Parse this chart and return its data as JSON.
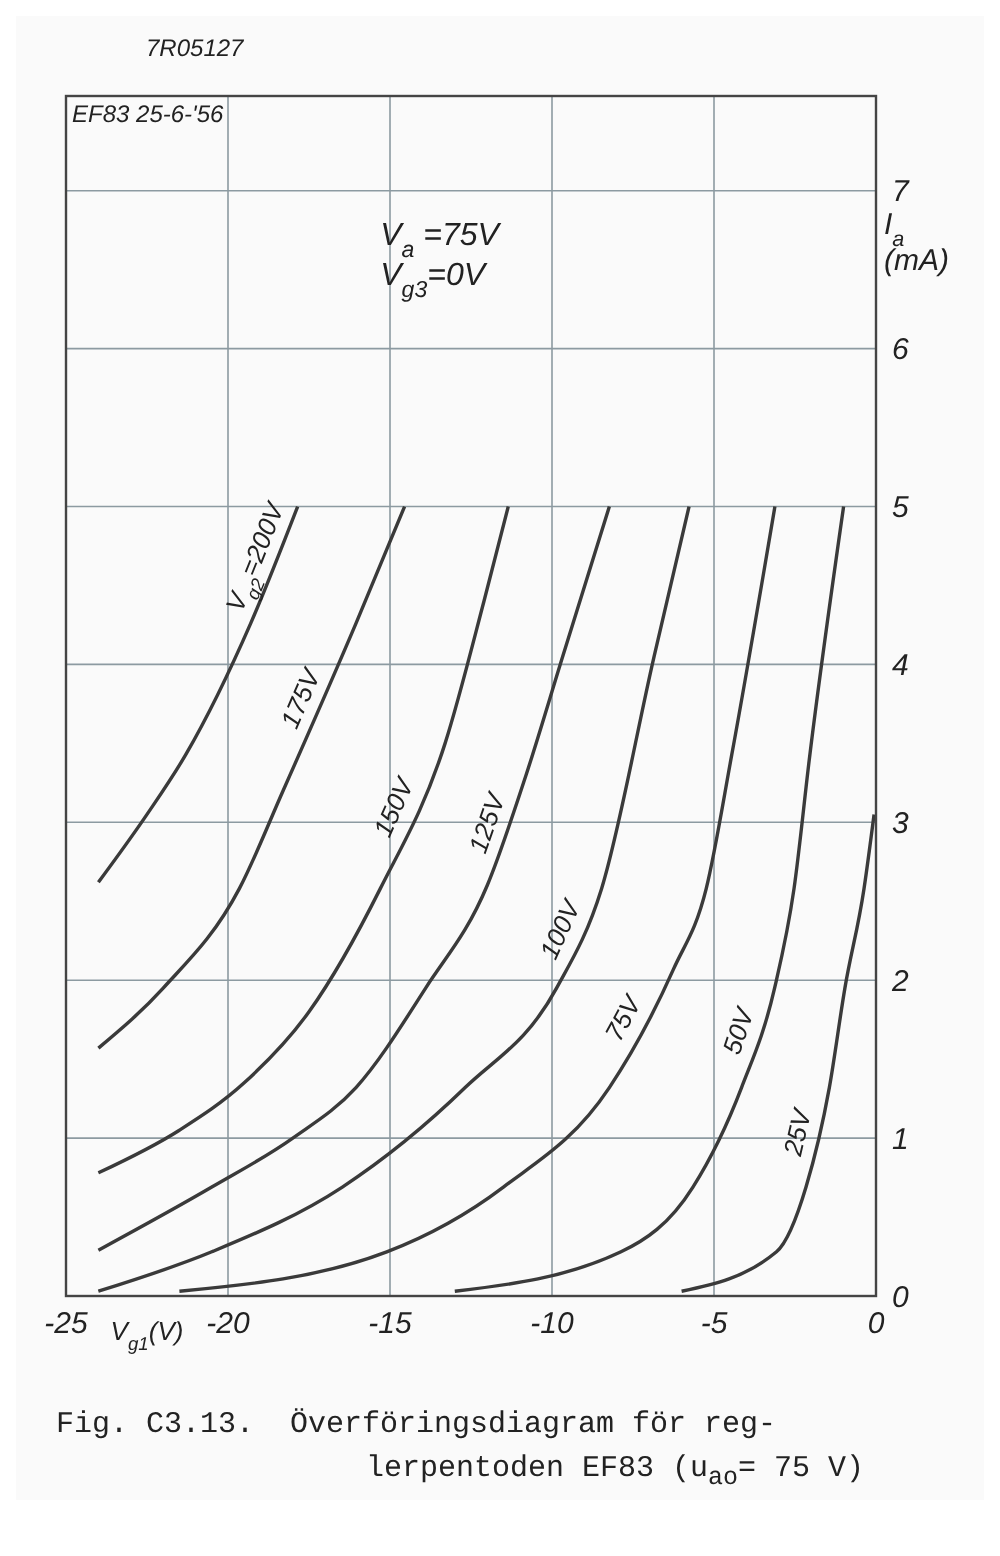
{
  "chart_data": {
    "type": "line",
    "title": "Fig. C3.13.  Överföringsdiagram för reg-\nlerpentoden EF83 (u$_{ao}$= 75 V)",
    "xlabel": "V$_{g1}$(V)",
    "ylabel": "I$_{a}$\n(mA)",
    "annotations": [
      "7R05127",
      "EF83 25-6-'56",
      "V$_{a}$ =75V\nV$_{g3}$=0V"
    ],
    "xlim": [
      -25,
      0
    ],
    "xticks": [
      -25,
      -20,
      -15,
      -10,
      -5,
      0
    ],
    "ylim": [
      0,
      7.6
    ],
    "yticks": [
      0,
      1,
      2,
      3,
      4,
      5,
      6,
      7
    ],
    "grid": true,
    "line_style": "solid",
    "series": [
      {
        "name": "V$_{g2}$=200V",
        "color": "#3a3a3a",
        "x": [
          -24,
          -22.5,
          -21.3,
          -19.3,
          -17.85
        ],
        "values": [
          2.62,
          3.05,
          3.43,
          4.26,
          5.0
        ]
      },
      {
        "name": "175V",
        "color": "#3a3a3a",
        "x": [
          -24,
          -22,
          -19.65,
          -18.3,
          -16.05,
          -14.55
        ],
        "values": [
          1.57,
          1.95,
          2.58,
          3.2,
          4.26,
          5.0
        ]
      },
      {
        "name": "150V",
        "color": "#3a3a3a",
        "x": [
          -24,
          -21.5,
          -19.5,
          -17.5,
          -15.3,
          -13.3,
          -12.1,
          -11.35
        ],
        "values": [
          0.78,
          1.05,
          1.35,
          1.8,
          2.58,
          3.5,
          4.4,
          5.0
        ]
      },
      {
        "name": "125V",
        "color": "#3a3a3a",
        "x": [
          -24,
          -20.5,
          -18,
          -16.05,
          -13.9,
          -12,
          -10.8,
          -9.67,
          -8.23
        ],
        "values": [
          0.29,
          0.69,
          1.0,
          1.32,
          1.95,
          2.6,
          3.3,
          4.05,
          5.0
        ]
      },
      {
        "name": "100V",
        "color": "#3a3a3a",
        "x": [
          -24,
          -20.5,
          -16.47,
          -12.68,
          -9.86,
          -8.47,
          -6.85,
          -5.77
        ],
        "values": [
          0.03,
          0.28,
          0.69,
          1.32,
          1.95,
          2.58,
          4.05,
          5.0
        ]
      },
      {
        "name": "75V",
        "color": "#3a3a3a",
        "x": [
          -21.5,
          -15.1,
          -11.5,
          -8.23,
          -6.25,
          -5.24,
          -4.45,
          -3.12
        ],
        "values": [
          0.03,
          0.28,
          0.69,
          1.32,
          2.07,
          2.58,
          3.43,
          5.0
        ]
      },
      {
        "name": "50V",
        "color": "#3a3a3a",
        "x": [
          -13,
          -7.87,
          -5.65,
          -4.15,
          -3.13,
          -2.53,
          -2.04,
          -1.0
        ],
        "values": [
          0.03,
          0.28,
          0.69,
          1.32,
          1.95,
          2.58,
          3.43,
          5.0
        ]
      },
      {
        "name": "25V",
        "color": "#3a3a3a",
        "x": [
          -6,
          -3.07,
          -2.16,
          -1.44,
          -0.96,
          -0.37,
          -0.06
        ],
        "values": [
          0.03,
          0.28,
          0.69,
          1.32,
          1.95,
          2.58,
          3.05
        ]
      }
    ]
  }
}
